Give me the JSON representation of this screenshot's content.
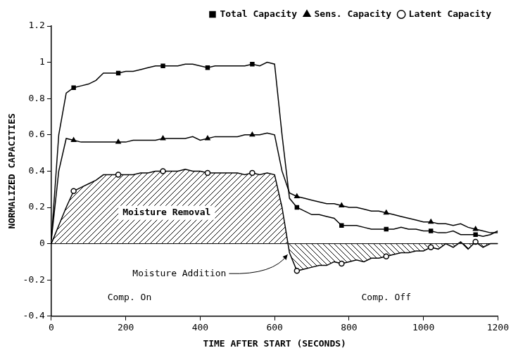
{
  "chart_data": {
    "type": "line",
    "x_label": "TIME AFTER START (SECONDS)",
    "y_label": "NORMALIZED CAPACITIES",
    "x": [
      0,
      20,
      40,
      60,
      80,
      100,
      120,
      140,
      160,
      180,
      200,
      220,
      240,
      260,
      280,
      300,
      320,
      340,
      360,
      380,
      400,
      420,
      440,
      460,
      480,
      500,
      520,
      540,
      560,
      580,
      600,
      620,
      640,
      660,
      680,
      700,
      720,
      740,
      760,
      780,
      800,
      820,
      840,
      860,
      880,
      900,
      920,
      940,
      960,
      980,
      1000,
      1020,
      1040,
      1060,
      1080,
      1100,
      1120,
      1140,
      1160,
      1180,
      1200
    ],
    "series": [
      {
        "name": "Total Capacity",
        "color": "#000000",
        "marker": "square",
        "values": [
          0.02,
          0.6,
          0.83,
          0.86,
          0.87,
          0.88,
          0.9,
          0.94,
          0.94,
          0.94,
          0.95,
          0.95,
          0.96,
          0.97,
          0.98,
          0.98,
          0.98,
          0.98,
          0.99,
          0.99,
          0.98,
          0.97,
          0.98,
          0.98,
          0.98,
          0.98,
          0.98,
          0.99,
          0.98,
          1.0,
          0.99,
          0.6,
          0.25,
          0.2,
          0.18,
          0.16,
          0.16,
          0.15,
          0.14,
          0.1,
          0.1,
          0.1,
          0.09,
          0.08,
          0.08,
          0.08,
          0.08,
          0.09,
          0.08,
          0.08,
          0.07,
          0.07,
          0.06,
          0.06,
          0.07,
          0.05,
          0.05,
          0.05,
          0.04,
          0.05,
          0.07
        ]
      },
      {
        "name": "Sens. Capacity",
        "color": "#000000",
        "marker": "triangle",
        "values": [
          0.02,
          0.4,
          0.58,
          0.57,
          0.56,
          0.56,
          0.56,
          0.56,
          0.56,
          0.56,
          0.56,
          0.57,
          0.57,
          0.57,
          0.57,
          0.58,
          0.58,
          0.58,
          0.58,
          0.59,
          0.57,
          0.58,
          0.59,
          0.59,
          0.59,
          0.59,
          0.6,
          0.6,
          0.6,
          0.61,
          0.6,
          0.4,
          0.28,
          0.26,
          0.25,
          0.24,
          0.23,
          0.22,
          0.22,
          0.21,
          0.2,
          0.2,
          0.19,
          0.18,
          0.18,
          0.17,
          0.16,
          0.15,
          0.14,
          0.13,
          0.12,
          0.12,
          0.11,
          0.11,
          0.1,
          0.11,
          0.09,
          0.08,
          0.07,
          0.06,
          0.06
        ]
      },
      {
        "name": "Latent Capacity",
        "color": "#000000",
        "marker": "circle",
        "values": [
          0.0,
          0.1,
          0.2,
          0.29,
          0.31,
          0.33,
          0.35,
          0.38,
          0.38,
          0.38,
          0.38,
          0.38,
          0.39,
          0.39,
          0.4,
          0.4,
          0.4,
          0.4,
          0.41,
          0.4,
          0.4,
          0.39,
          0.39,
          0.39,
          0.39,
          0.39,
          0.38,
          0.39,
          0.38,
          0.39,
          0.38,
          0.2,
          -0.05,
          -0.15,
          -0.14,
          -0.13,
          -0.12,
          -0.12,
          -0.1,
          -0.11,
          -0.1,
          -0.09,
          -0.1,
          -0.08,
          -0.08,
          -0.07,
          -0.06,
          -0.05,
          -0.05,
          -0.04,
          -0.04,
          -0.02,
          -0.03,
          0.0,
          -0.02,
          0.01,
          -0.03,
          0.01,
          -0.02,
          0.0,
          0.0
        ]
      }
    ],
    "xlim": [
      0,
      1200
    ],
    "xticks": [
      0,
      200,
      400,
      600,
      800,
      1000,
      1200
    ],
    "ylim": [
      -0.4,
      1.2
    ],
    "yticks": [
      -0.4,
      -0.2,
      0,
      0.2,
      0.4,
      0.6,
      0.8,
      1,
      1.2
    ],
    "grid": false,
    "legend": "upper right",
    "annotations": [
      "Moisture Removal",
      "Moisture Addition",
      "Comp. On",
      "Comp. Off"
    ]
  }
}
